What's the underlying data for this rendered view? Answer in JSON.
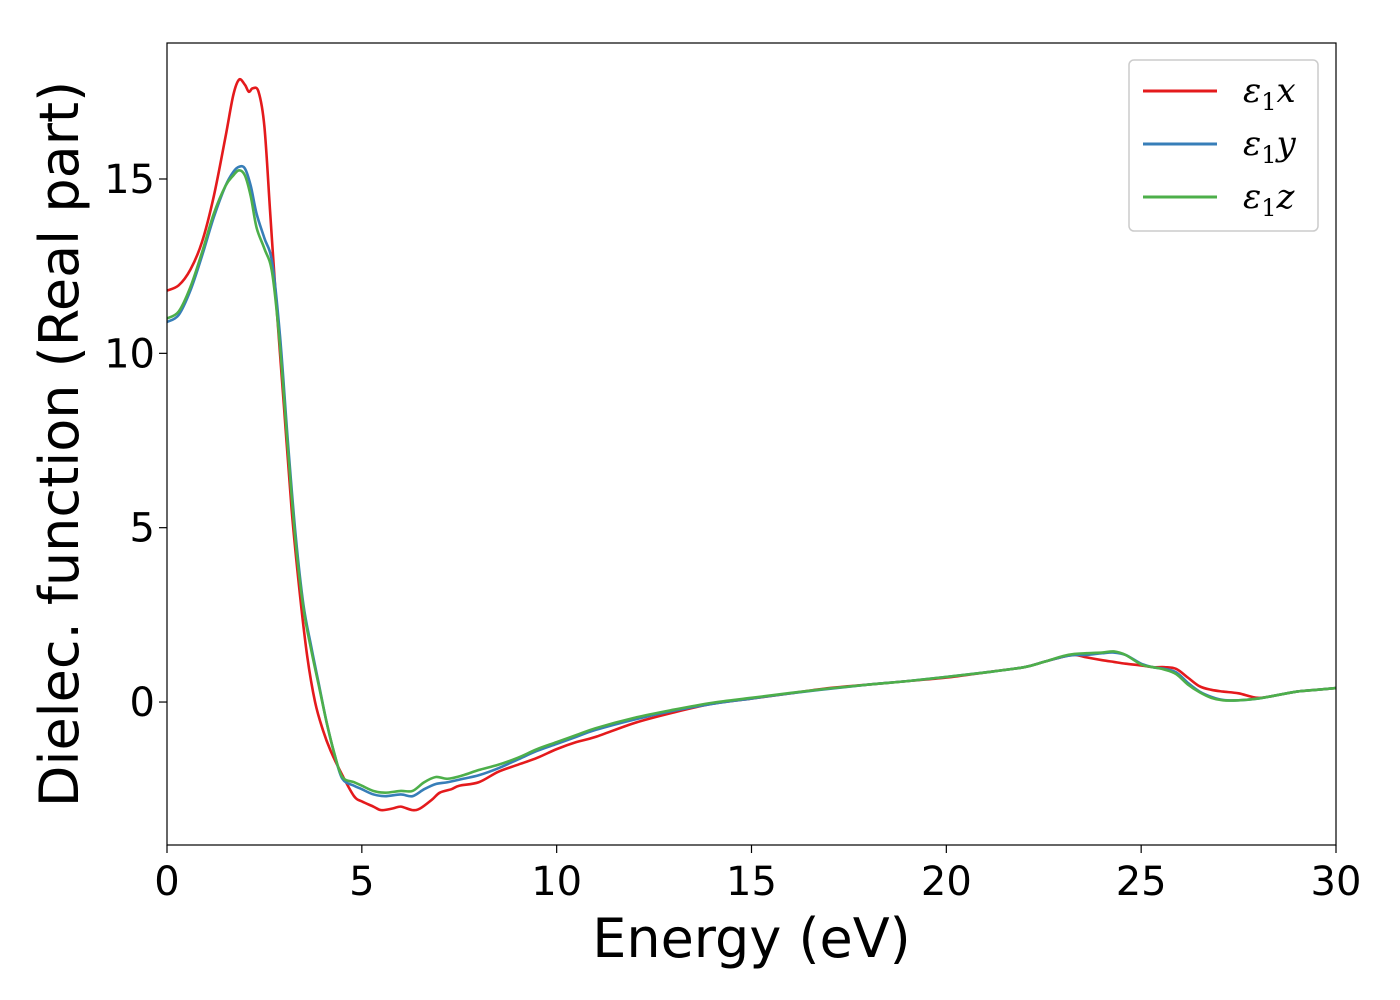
{
  "chart_data": {
    "type": "line",
    "title": "",
    "xlabel": "Energy (eV)",
    "ylabel": "Dielec. function (Real part)",
    "xlim": [
      0,
      30
    ],
    "ylim": [
      -4.1,
      18.9
    ],
    "xticks": [
      0,
      5,
      10,
      15,
      20,
      25,
      30
    ],
    "yticks": [
      0,
      5,
      10,
      15
    ],
    "grid": false,
    "legend_position": "top-right",
    "series": [
      {
        "name": "ε1x",
        "legend": {
          "base": "ε",
          "sub": "1",
          "suffix": "x"
        },
        "color": "#e41a1c",
        "x": [
          0,
          0.3,
          0.6,
          0.9,
          1.2,
          1.5,
          1.7,
          1.85,
          2.0,
          2.1,
          2.2,
          2.35,
          2.5,
          2.65,
          2.8,
          3.0,
          3.2,
          3.4,
          3.6,
          3.8,
          4.0,
          4.2,
          4.5,
          4.8,
          5.0,
          5.3,
          5.5,
          5.8,
          6.0,
          6.3,
          6.5,
          6.8,
          7.0,
          7.3,
          7.5,
          8.0,
          8.5,
          9.0,
          9.5,
          10.0,
          10.5,
          11.0,
          12.0,
          13.0,
          14.0,
          15.0,
          16.0,
          17.0,
          18.0,
          19.0,
          20.0,
          21.0,
          22.0,
          22.5,
          23.0,
          23.3,
          23.6,
          24.0,
          24.3,
          24.6,
          25.0,
          25.3,
          25.6,
          25.9,
          26.2,
          26.5,
          26.8,
          27.1,
          27.5,
          28.0,
          28.5,
          29.0,
          29.5,
          30.0
        ],
        "y": [
          11.8,
          11.95,
          12.4,
          13.2,
          14.5,
          16.2,
          17.4,
          17.85,
          17.7,
          17.5,
          17.6,
          17.5,
          16.5,
          14.0,
          11.5,
          8.5,
          5.5,
          3.2,
          1.3,
          0.0,
          -0.8,
          -1.4,
          -2.1,
          -2.7,
          -2.85,
          -3.0,
          -3.1,
          -3.05,
          -3.0,
          -3.1,
          -3.05,
          -2.8,
          -2.6,
          -2.5,
          -2.4,
          -2.3,
          -2.0,
          -1.8,
          -1.6,
          -1.35,
          -1.15,
          -1.0,
          -0.6,
          -0.3,
          -0.05,
          0.1,
          0.25,
          0.4,
          0.5,
          0.6,
          0.7,
          0.85,
          1.0,
          1.15,
          1.3,
          1.35,
          1.28,
          1.2,
          1.15,
          1.1,
          1.05,
          1.0,
          1.0,
          0.95,
          0.7,
          0.45,
          0.35,
          0.3,
          0.25,
          0.12,
          0.2,
          0.3,
          0.35,
          0.4
        ]
      },
      {
        "name": "ε1y",
        "legend": {
          "base": "ε",
          "sub": "1",
          "suffix": "y"
        },
        "color": "#377eb8",
        "x": [
          0,
          0.3,
          0.6,
          0.9,
          1.2,
          1.5,
          1.7,
          1.85,
          2.0,
          2.15,
          2.3,
          2.5,
          2.7,
          2.9,
          3.1,
          3.3,
          3.5,
          3.7,
          3.9,
          4.1,
          4.3,
          4.5,
          4.8,
          5.0,
          5.3,
          5.6,
          6.0,
          6.3,
          6.6,
          6.9,
          7.2,
          7.6,
          8.0,
          8.5,
          9.0,
          9.5,
          10.0,
          10.5,
          11.0,
          12.0,
          13.0,
          14.0,
          15.0,
          16.0,
          17.0,
          18.0,
          19.0,
          20.0,
          21.0,
          22.0,
          22.5,
          23.0,
          23.3,
          23.6,
          24.0,
          24.3,
          24.6,
          25.0,
          25.3,
          25.6,
          25.9,
          26.2,
          26.5,
          26.8,
          27.1,
          27.5,
          28.0,
          28.5,
          29.0,
          29.5,
          30.0
        ],
        "y": [
          10.9,
          11.1,
          11.8,
          12.8,
          13.9,
          14.8,
          15.2,
          15.35,
          15.3,
          14.8,
          14.0,
          13.3,
          12.6,
          10.5,
          7.5,
          4.8,
          2.8,
          1.6,
          0.5,
          -0.6,
          -1.5,
          -2.2,
          -2.4,
          -2.5,
          -2.65,
          -2.7,
          -2.65,
          -2.7,
          -2.5,
          -2.35,
          -2.3,
          -2.2,
          -2.1,
          -1.9,
          -1.65,
          -1.4,
          -1.2,
          -1.0,
          -0.8,
          -0.5,
          -0.25,
          -0.05,
          0.1,
          0.25,
          0.38,
          0.5,
          0.6,
          0.72,
          0.85,
          1.0,
          1.15,
          1.3,
          1.35,
          1.35,
          1.4,
          1.42,
          1.35,
          1.1,
          1.0,
          0.95,
          0.85,
          0.55,
          0.3,
          0.15,
          0.06,
          0.05,
          0.1,
          0.2,
          0.3,
          0.35,
          0.4
        ]
      },
      {
        "name": "ε1z",
        "legend": {
          "base": "ε",
          "sub": "1",
          "suffix": "z"
        },
        "color": "#4daf4a",
        "x": [
          0,
          0.3,
          0.6,
          0.9,
          1.2,
          1.5,
          1.7,
          1.85,
          2.0,
          2.15,
          2.3,
          2.5,
          2.7,
          2.9,
          3.1,
          3.3,
          3.5,
          3.7,
          3.9,
          4.1,
          4.3,
          4.5,
          4.8,
          5.0,
          5.3,
          5.6,
          6.0,
          6.3,
          6.6,
          6.9,
          7.2,
          7.6,
          8.0,
          8.5,
          9.0,
          9.5,
          10.0,
          10.5,
          11.0,
          12.0,
          13.0,
          14.0,
          15.0,
          16.0,
          17.0,
          18.0,
          19.0,
          20.0,
          21.0,
          22.0,
          22.5,
          23.0,
          23.3,
          23.6,
          24.0,
          24.3,
          24.6,
          25.0,
          25.3,
          25.6,
          25.9,
          26.2,
          26.5,
          26.8,
          27.1,
          27.5,
          28.0,
          28.5,
          29.0,
          29.5,
          30.0
        ],
        "y": [
          11.0,
          11.2,
          11.9,
          12.9,
          14.0,
          14.8,
          15.1,
          15.25,
          15.1,
          14.5,
          13.6,
          13.0,
          12.3,
          10.2,
          7.3,
          4.6,
          2.7,
          1.5,
          0.45,
          -0.6,
          -1.5,
          -2.15,
          -2.3,
          -2.4,
          -2.55,
          -2.6,
          -2.55,
          -2.55,
          -2.3,
          -2.15,
          -2.2,
          -2.1,
          -1.95,
          -1.8,
          -1.6,
          -1.35,
          -1.15,
          -0.95,
          -0.75,
          -0.45,
          -0.22,
          -0.02,
          0.12,
          0.26,
          0.39,
          0.5,
          0.6,
          0.72,
          0.85,
          1.0,
          1.15,
          1.32,
          1.38,
          1.4,
          1.42,
          1.45,
          1.35,
          1.08,
          1.0,
          0.93,
          0.8,
          0.5,
          0.28,
          0.12,
          0.05,
          0.05,
          0.1,
          0.2,
          0.3,
          0.35,
          0.4
        ]
      }
    ]
  }
}
